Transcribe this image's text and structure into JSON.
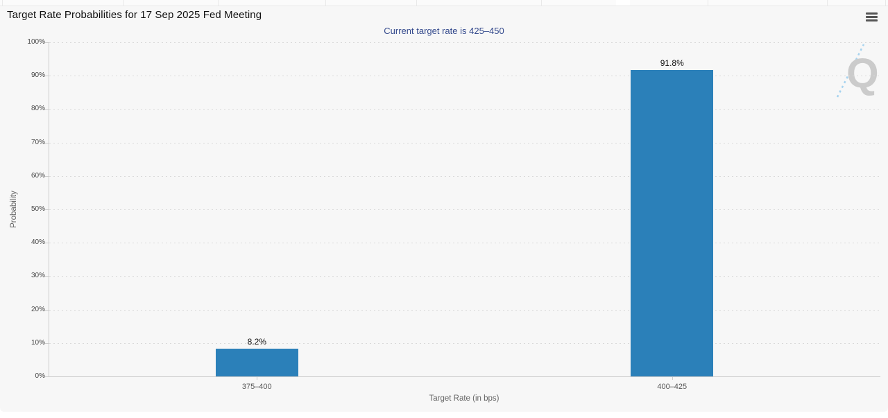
{
  "chart": {
    "title": "Target Rate Probabilities for 17 Sep 2025 Fed Meeting",
    "subtitle": "Current target rate is 425–450",
    "y_axis_title": "Probability",
    "x_axis_title": "Target Rate (in bps)",
    "watermark_letter": "Q",
    "icons": {
      "menu": "hamburger-icon",
      "watermark_slash": "watermark-slash-icon"
    },
    "colors": {
      "bar": "#2b80b9",
      "subtitle_text": "#33498c",
      "chart_background": "#f7f7f7",
      "gridline": "#d9d9d9",
      "watermark_gray": "#cbcbcb",
      "watermark_blue": "#a6d3ef"
    }
  },
  "chart_data": {
    "type": "bar",
    "title": "Target Rate Probabilities for 17 Sep 2025 Fed Meeting",
    "subtitle": "Current target rate is 425–450",
    "categories": [
      "375–400",
      "400–425"
    ],
    "values": [
      8.2,
      91.8
    ],
    "data_labels": [
      "8.2%",
      "91.8%"
    ],
    "xlabel": "Target Rate (in bps)",
    "ylabel": "Probability",
    "ylim": [
      0,
      100
    ],
    "y_tick_step": 10,
    "y_tick_labels": [
      "0%",
      "10%",
      "20%",
      "30%",
      "40%",
      "50%",
      "60%",
      "70%",
      "80%",
      "90%",
      "100%"
    ],
    "grid": "horizontal-dotted",
    "legend": "none"
  }
}
